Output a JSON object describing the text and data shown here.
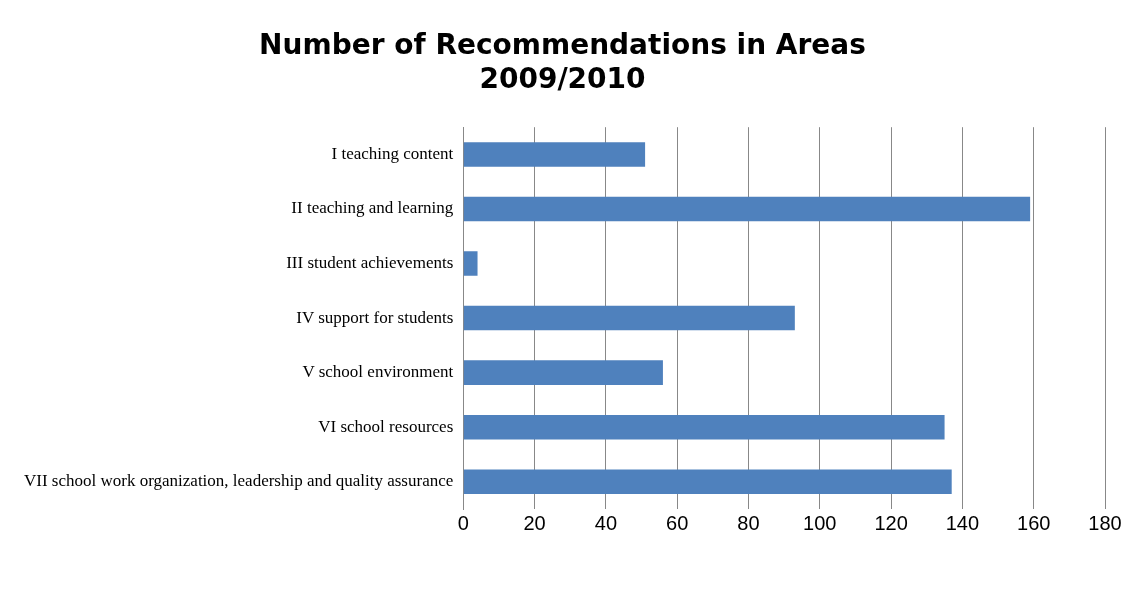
{
  "chart_data": {
    "type": "bar",
    "orientation": "horizontal",
    "title": "Number of Recommendations in Areas\n2009/2010",
    "categories": [
      "I teaching content",
      "II teaching and learning",
      "III student achievements",
      "IV support for students",
      "V school environment",
      "VI school resources",
      "VII school work organization, leadership and quality assurance"
    ],
    "values": [
      51,
      159,
      4,
      93,
      56,
      135,
      137
    ],
    "color": "#4f81bd",
    "xlim": [
      0,
      180
    ],
    "xticks": [
      0,
      20,
      40,
      60,
      80,
      100,
      120,
      140,
      160,
      180
    ],
    "grid": "x",
    "legend": false
  }
}
